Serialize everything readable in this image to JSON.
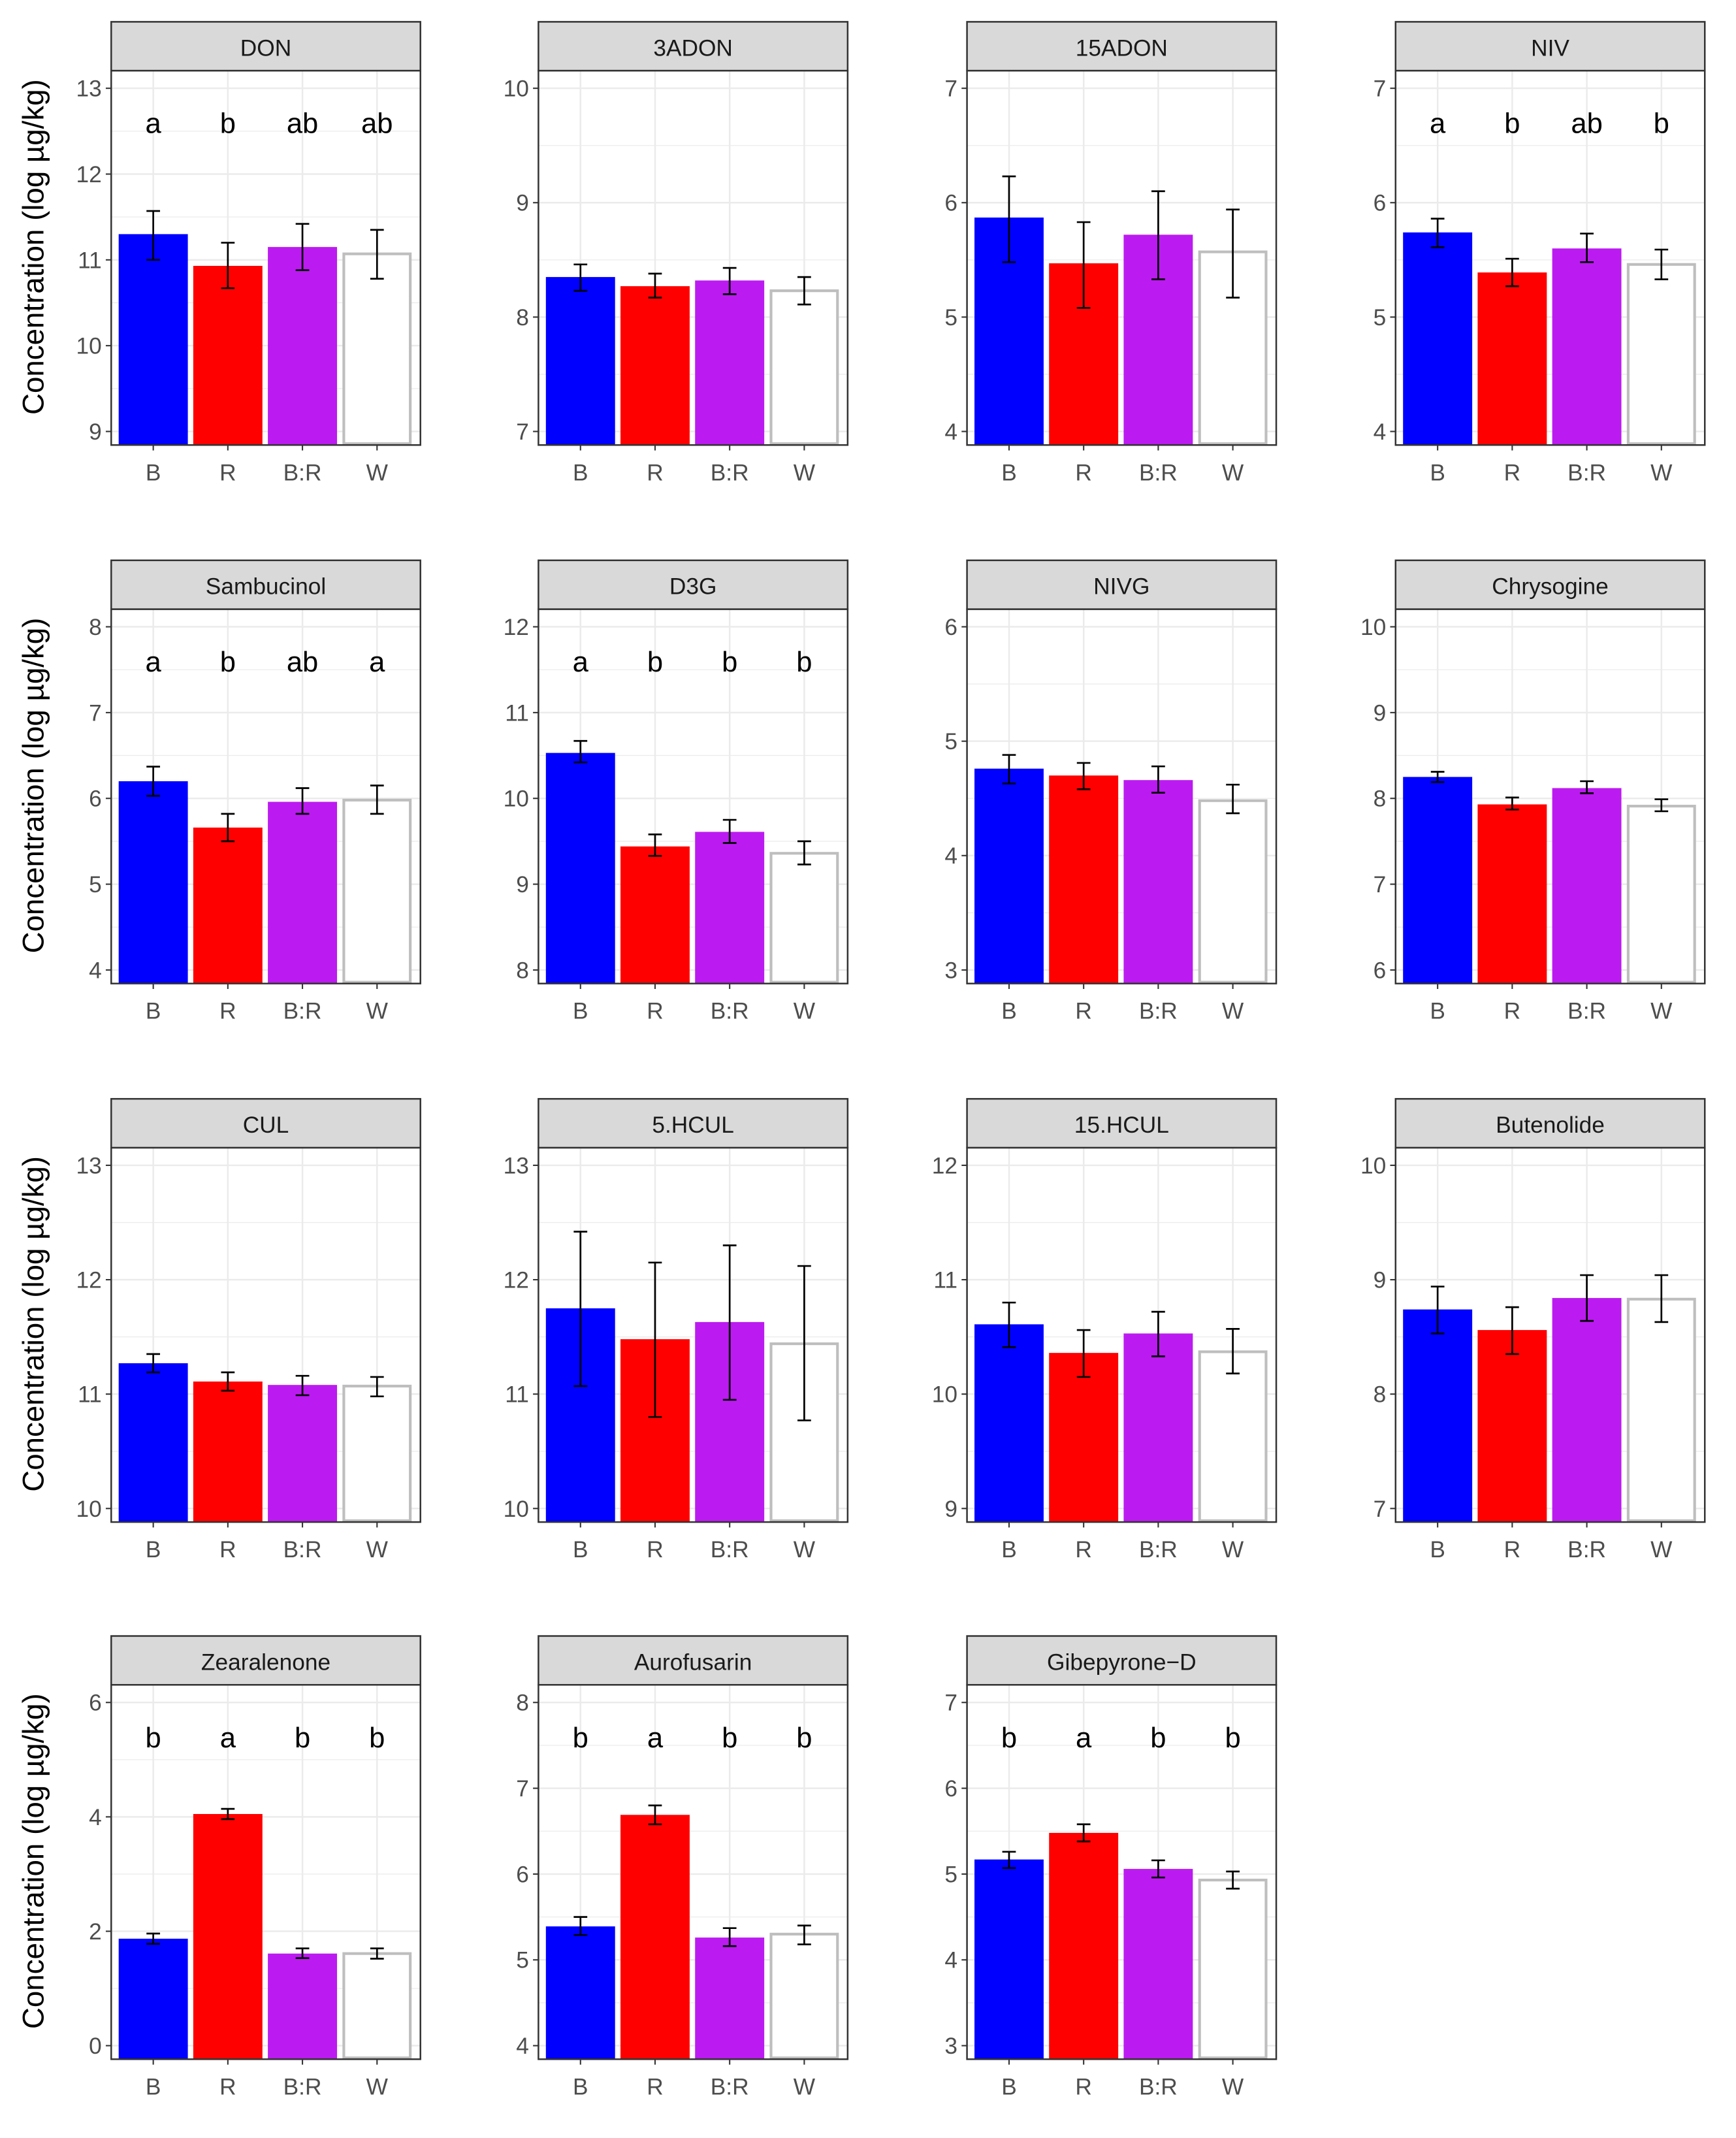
{
  "chart_data": {
    "type": "bar",
    "ylabel": "Concentration (log µg/kg)",
    "categories": [
      "B",
      "R",
      "B:R",
      "W"
    ],
    "colors": {
      "B": "#0000FF",
      "R": "#FF0000",
      "B:R": "#BB1BF0",
      "W": "#FFFFFF",
      "W_outline": "#BEBEBE",
      "strip": "#D9D9D9",
      "grid": "#EBEBEB"
    },
    "panels": [
      {
        "title": "DON",
        "ticks": [
          9,
          10,
          11,
          12,
          13
        ],
        "letters": [
          "a",
          "b",
          "ab",
          "ab"
        ],
        "values": [
          11.3,
          10.93,
          11.15,
          11.07
        ],
        "err_low": [
          11.0,
          10.67,
          10.88,
          10.78
        ],
        "err_high": [
          11.57,
          11.2,
          11.42,
          11.35
        ]
      },
      {
        "title": "3ADON",
        "ticks": [
          7,
          8,
          9,
          10
        ],
        "letters": null,
        "values": [
          8.35,
          8.27,
          8.32,
          8.23
        ],
        "err_low": [
          8.23,
          8.17,
          8.2,
          8.11
        ],
        "err_high": [
          8.46,
          8.38,
          8.43,
          8.35
        ]
      },
      {
        "title": "15ADON",
        "ticks": [
          4,
          5,
          6,
          7
        ],
        "letters": null,
        "values": [
          5.87,
          5.47,
          5.72,
          5.57
        ],
        "err_low": [
          5.48,
          5.08,
          5.33,
          5.17
        ],
        "err_high": [
          6.23,
          5.83,
          6.1,
          5.94
        ]
      },
      {
        "title": "NIV",
        "ticks": [
          4,
          5,
          6,
          7
        ],
        "letters": [
          "a",
          "b",
          "ab",
          "b"
        ],
        "values": [
          5.74,
          5.39,
          5.6,
          5.46
        ],
        "err_low": [
          5.61,
          5.27,
          5.48,
          5.33
        ],
        "err_high": [
          5.86,
          5.51,
          5.73,
          5.59
        ]
      },
      {
        "title": "Sambucinol",
        "ticks": [
          4,
          5,
          6,
          7,
          8
        ],
        "letters": [
          "a",
          "b",
          "ab",
          "a"
        ],
        "values": [
          6.2,
          5.66,
          5.96,
          5.98
        ],
        "err_low": [
          6.03,
          5.5,
          5.82,
          5.82
        ],
        "err_high": [
          6.37,
          5.82,
          6.12,
          6.15
        ]
      },
      {
        "title": "D3G",
        "ticks": [
          8,
          9,
          10,
          11,
          12
        ],
        "letters": [
          "a",
          "b",
          "b",
          "b"
        ],
        "values": [
          10.53,
          9.44,
          9.61,
          9.36
        ],
        "err_low": [
          10.42,
          9.33,
          9.48,
          9.23
        ],
        "err_high": [
          10.67,
          9.58,
          9.75,
          9.5
        ]
      },
      {
        "title": "NIVG",
        "ticks": [
          3,
          4,
          5,
          6
        ],
        "letters": null,
        "values": [
          4.76,
          4.7,
          4.66,
          4.48
        ],
        "err_low": [
          4.63,
          4.58,
          4.55,
          4.37
        ],
        "err_high": [
          4.88,
          4.81,
          4.78,
          4.62
        ]
      },
      {
        "title": "Chrysogine",
        "ticks": [
          6,
          7,
          8,
          9,
          10
        ],
        "letters": null,
        "values": [
          8.25,
          7.93,
          8.12,
          7.91
        ],
        "err_low": [
          8.19,
          7.87,
          8.06,
          7.85
        ],
        "err_high": [
          8.31,
          8.01,
          8.2,
          7.99
        ]
      },
      {
        "title": "CUL",
        "ticks": [
          10,
          11,
          12,
          13
        ],
        "letters": null,
        "values": [
          11.27,
          11.11,
          11.08,
          11.07
        ],
        "err_low": [
          11.19,
          11.03,
          10.99,
          10.98
        ],
        "err_high": [
          11.35,
          11.19,
          11.16,
          11.15
        ]
      },
      {
        "title": "5.HCUL",
        "ticks": [
          10,
          11,
          12,
          13
        ],
        "letters": null,
        "values": [
          11.75,
          11.48,
          11.63,
          11.44
        ],
        "err_low": [
          11.07,
          10.8,
          10.95,
          10.77
        ],
        "err_high": [
          12.42,
          12.15,
          12.3,
          12.12
        ]
      },
      {
        "title": "15.HCUL",
        "ticks": [
          9,
          10,
          11,
          12
        ],
        "letters": null,
        "values": [
          10.61,
          10.36,
          10.53,
          10.37
        ],
        "err_low": [
          10.41,
          10.15,
          10.33,
          10.18
        ],
        "err_high": [
          10.8,
          10.56,
          10.72,
          10.57
        ]
      },
      {
        "title": "Butenolide",
        "ticks": [
          7,
          8,
          9,
          10
        ],
        "letters": null,
        "values": [
          8.74,
          8.56,
          8.84,
          8.83
        ],
        "err_low": [
          8.53,
          8.35,
          8.64,
          8.63
        ],
        "err_high": [
          8.94,
          8.76,
          9.04,
          9.04
        ]
      },
      {
        "title": "Zearalenone",
        "ticks": [
          0,
          2,
          4,
          6
        ],
        "letters": [
          "b",
          "a",
          "b",
          "b"
        ],
        "values": [
          1.87,
          4.05,
          1.61,
          1.61
        ],
        "err_low": [
          1.78,
          3.96,
          1.53,
          1.52
        ],
        "err_high": [
          1.96,
          4.14,
          1.7,
          1.7
        ]
      },
      {
        "title": "Aurofusarin",
        "ticks": [
          4,
          5,
          6,
          7,
          8
        ],
        "letters": [
          "b",
          "a",
          "b",
          "b"
        ],
        "values": [
          5.39,
          6.69,
          5.26,
          5.3
        ],
        "err_low": [
          5.29,
          6.58,
          5.16,
          5.18
        ],
        "err_high": [
          5.5,
          6.8,
          5.37,
          5.4
        ]
      },
      {
        "title": "Gibepyrone−D",
        "ticks": [
          3,
          4,
          5,
          6,
          7
        ],
        "letters": [
          "b",
          "a",
          "b",
          "b"
        ],
        "values": [
          5.17,
          5.48,
          5.06,
          4.93
        ],
        "err_low": [
          5.07,
          5.38,
          4.96,
          4.83
        ],
        "err_high": [
          5.26,
          5.58,
          5.16,
          5.03
        ]
      }
    ]
  }
}
